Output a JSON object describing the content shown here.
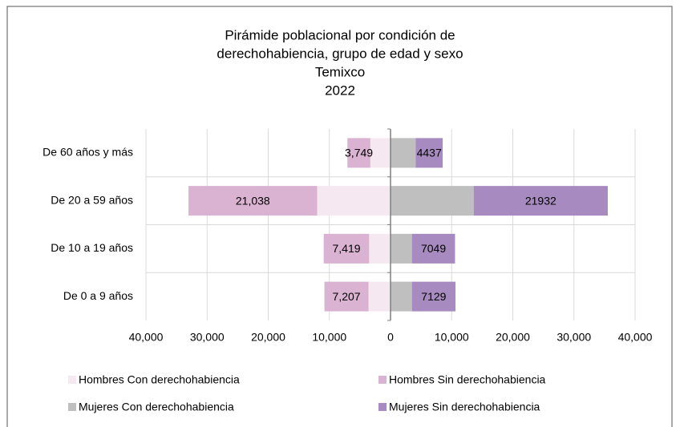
{
  "chart_data": {
    "type": "pyramid",
    "title": [
      "Pirámide poblacional por condición de",
      "derechohabiencia, grupo de edad y sexo",
      "Temixco",
      "2022"
    ],
    "categories": [
      "De 60 años y más",
      "De 20 a 59 años",
      "De 10 a 19 años",
      "De 0 a 9 años"
    ],
    "series": [
      {
        "name": "Hombres Con derechohabiencia",
        "color": "#f6e8f0",
        "values": [
          -3300,
          -12000,
          -3500,
          -3600
        ]
      },
      {
        "name": "Hombres Sin derechohabiencia",
        "color": "#d9b3d1",
        "values": [
          -3749,
          -21038,
          -7419,
          -7207
        ],
        "value_labels": [
          "3,749",
          "21,038",
          "7,419",
          "7,207"
        ]
      },
      {
        "name": "Mujeres Con derechohabiencia",
        "color": "#bfbfbf",
        "values": [
          4100,
          13600,
          3500,
          3500
        ]
      },
      {
        "name": "Mujeres Sin derechohabiencia",
        "color": "#a78bc0",
        "values": [
          4437,
          21932,
          7049,
          7129
        ]
      }
    ],
    "xlim": [
      -40000,
      40000
    ],
    "xticks": [
      {
        "value": -40000,
        "label": "40,000"
      },
      {
        "value": -30000,
        "label": "30,000"
      },
      {
        "value": -20000,
        "label": "20,000"
      },
      {
        "value": -10000,
        "label": "10,000"
      },
      0,
      {
        "value": 10000,
        "label": "10,000"
      },
      {
        "value": 20000,
        "label": "20,000"
      },
      {
        "value": 30000,
        "label": "30,000"
      },
      {
        "value": 40000,
        "label": "40,000"
      }
    ],
    "grid": true
  }
}
